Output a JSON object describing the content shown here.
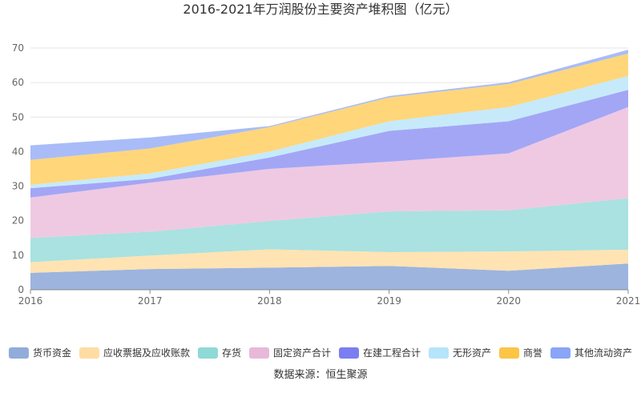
{
  "chart_data": {
    "type": "area",
    "stacked": true,
    "title": "2016-2021年万润股份主要资产堆积图（亿元）",
    "source": "数据来源：恒生聚源",
    "x": [
      "2016",
      "2017",
      "2018",
      "2019",
      "2020",
      "2021"
    ],
    "ylim": [
      0,
      70
    ],
    "yticks": [
      0,
      10,
      20,
      30,
      40,
      50,
      60,
      70
    ],
    "grid": true,
    "legend_position": "bottom",
    "series": [
      {
        "name": "货币资金",
        "color": "#9db4de",
        "values": [
          4.9,
          6.0,
          6.4,
          6.9,
          5.5,
          7.6
        ]
      },
      {
        "name": "应收票据及应收账款",
        "color": "#ffe3b3",
        "values": [
          3.1,
          3.9,
          5.3,
          4.0,
          5.6,
          4.0
        ]
      },
      {
        "name": "存货",
        "color": "#a9e2e0",
        "values": [
          7.0,
          6.9,
          8.2,
          11.8,
          11.9,
          14.9
        ]
      },
      {
        "name": "固定资产合计",
        "color": "#efc9e2",
        "values": [
          11.7,
          14.2,
          15.1,
          14.4,
          16.5,
          26.4
        ]
      },
      {
        "name": "在建工程合计",
        "color": "#a3a6f5",
        "values": [
          2.7,
          1.1,
          3.3,
          8.9,
          9.3,
          5.0
        ]
      },
      {
        "name": "无形资产",
        "color": "#c6eafa",
        "values": [
          1.0,
          1.6,
          1.7,
          2.8,
          4.1,
          4.0
        ]
      },
      {
        "name": "商誉",
        "color": "#ffd67a",
        "values": [
          7.2,
          7.2,
          7.1,
          6.9,
          6.7,
          6.5
        ]
      },
      {
        "name": "其他流动资产",
        "color": "#a9bcf8",
        "values": [
          4.2,
          3.2,
          0.3,
          0.4,
          0.5,
          1.1
        ]
      }
    ],
    "legend_swatch_colors": [
      "#91acd9",
      "#ffdca3",
      "#8fd9d6",
      "#e8b8d8",
      "#7b7ef1",
      "#b5e4fb",
      "#fbc546",
      "#8aa4f7"
    ]
  }
}
